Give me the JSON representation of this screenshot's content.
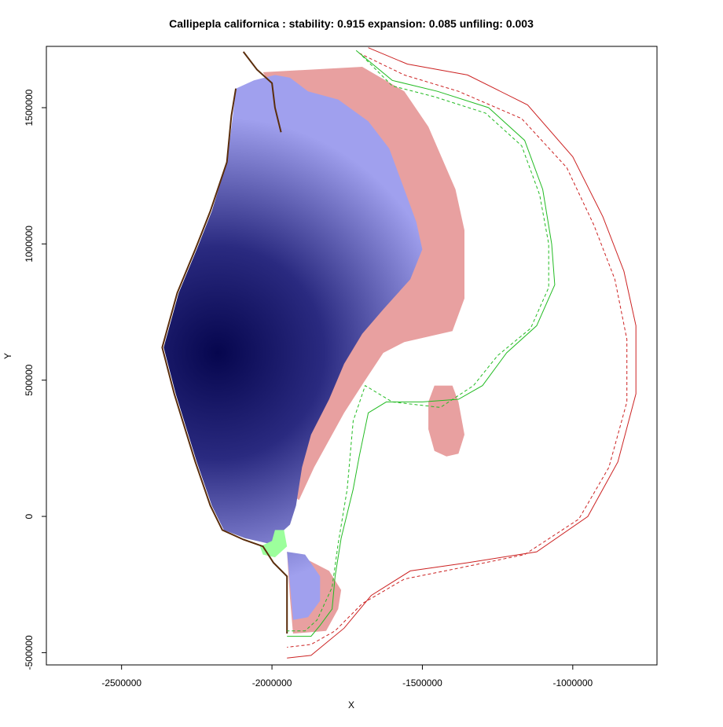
{
  "chart_data": {
    "type": "heatmap",
    "title": "Callipepla californica : stability: 0.915 expansion: 0.085 unfiling: 0.003",
    "xlabel": "X",
    "ylabel": "Y",
    "xlim": [
      -2750000,
      -720000
    ],
    "ylim": [
      -545000,
      1725000
    ],
    "x_ticks": [
      {
        "value": -2500000,
        "label": "-2500000"
      },
      {
        "value": -2000000,
        "label": "-2000000"
      },
      {
        "value": -1500000,
        "label": "-1500000"
      },
      {
        "value": -1000000,
        "label": "-1000000"
      }
    ],
    "y_ticks": [
      {
        "value": -500000,
        "label": "-500000"
      },
      {
        "value": 0,
        "label": "0"
      },
      {
        "value": 500000,
        "label": "500000"
      },
      {
        "value": 1000000,
        "label": "1000000"
      },
      {
        "value": 1500000,
        "label": "1500000"
      }
    ],
    "layers": [
      {
        "name": "expansion",
        "color": "#e8a0a0",
        "polygons": [
          [
            [
              -2030000,
              1630000
            ],
            [
              -1700000,
              1650000
            ],
            [
              -1560000,
              1560000
            ],
            [
              -1480000,
              1430000
            ],
            [
              -1390000,
              1200000
            ],
            [
              -1360000,
              1050000
            ],
            [
              -1360000,
              800000
            ],
            [
              -1400000,
              680000
            ],
            [
              -1560000,
              640000
            ],
            [
              -1630000,
              600000
            ],
            [
              -1690000,
              500000
            ],
            [
              -1760000,
              380000
            ],
            [
              -1860000,
              180000
            ],
            [
              -1910000,
              60000
            ],
            [
              -1960000,
              100000
            ],
            [
              -1960000,
              1500000
            ]
          ],
          [
            [
              -1460000,
              480000
            ],
            [
              -1400000,
              480000
            ],
            [
              -1380000,
              420000
            ],
            [
              -1360000,
              300000
            ],
            [
              -1380000,
              230000
            ],
            [
              -1420000,
              220000
            ],
            [
              -1460000,
              240000
            ],
            [
              -1480000,
              320000
            ],
            [
              -1480000,
              420000
            ]
          ],
          [
            [
              -1950000,
              -130000
            ],
            [
              -1880000,
              -160000
            ],
            [
              -1810000,
              -200000
            ],
            [
              -1770000,
              -270000
            ],
            [
              -1780000,
              -340000
            ],
            [
              -1820000,
              -420000
            ],
            [
              -1930000,
              -430000
            ],
            [
              -1940000,
              -300000
            ]
          ]
        ]
      },
      {
        "name": "stability",
        "color": "#0a0a5a",
        "polygons": [
          [
            [
              -2120000,
              1570000
            ],
            [
              -2060000,
              1600000
            ],
            [
              -1990000,
              1620000
            ],
            [
              -1940000,
              1610000
            ],
            [
              -1880000,
              1560000
            ],
            [
              -1780000,
              1530000
            ],
            [
              -1680000,
              1450000
            ],
            [
              -1610000,
              1350000
            ],
            [
              -1560000,
              1200000
            ],
            [
              -1520000,
              1080000
            ],
            [
              -1500000,
              980000
            ],
            [
              -1540000,
              870000
            ],
            [
              -1630000,
              760000
            ],
            [
              -1700000,
              670000
            ],
            [
              -1760000,
              560000
            ],
            [
              -1810000,
              430000
            ],
            [
              -1870000,
              300000
            ],
            [
              -1900000,
              180000
            ],
            [
              -1920000,
              40000
            ],
            [
              -1940000,
              -30000
            ],
            [
              -2010000,
              -100000
            ],
            [
              -2090000,
              -80000
            ],
            [
              -2160000,
              -50000
            ],
            [
              -2200000,
              40000
            ],
            [
              -2250000,
              200000
            ],
            [
              -2320000,
              450000
            ],
            [
              -2360000,
              620000
            ],
            [
              -2310000,
              820000
            ],
            [
              -2250000,
              980000
            ],
            [
              -2200000,
              1120000
            ],
            [
              -2150000,
              1300000
            ],
            [
              -2130000,
              1470000
            ]
          ],
          [
            [
              -1950000,
              -130000
            ],
            [
              -1890000,
              -140000
            ],
            [
              -1840000,
              -220000
            ],
            [
              -1840000,
              -310000
            ],
            [
              -1880000,
              -370000
            ],
            [
              -1930000,
              -380000
            ],
            [
              -1940000,
              -250000
            ]
          ]
        ]
      },
      {
        "name": "unfilling",
        "color": "#9cff9c",
        "polygons": [
          [
            [
              -2040000,
              -110000
            ],
            [
              -2000000,
              -90000
            ],
            [
              -1990000,
              -50000
            ],
            [
              -1960000,
              -50000
            ],
            [
              -1950000,
              -110000
            ],
            [
              -1990000,
              -150000
            ],
            [
              -2030000,
              -140000
            ]
          ]
        ]
      },
      {
        "name": "native-range-outline",
        "color": "#5a2d0c",
        "polylines": [
          [
            [
              -2120000,
              1570000
            ],
            [
              -2135000,
              1470000
            ],
            [
              -2150000,
              1300000
            ],
            [
              -2205000,
              1120000
            ],
            [
              -2255000,
              980000
            ],
            [
              -2315000,
              820000
            ],
            [
              -2365000,
              620000
            ],
            [
              -2325000,
              450000
            ],
            [
              -2255000,
              200000
            ],
            [
              -2205000,
              40000
            ],
            [
              -2165000,
              -50000
            ],
            [
              -2095000,
              -85000
            ],
            [
              -2030000,
              -110000
            ],
            [
              -1995000,
              -170000
            ],
            [
              -1950000,
              -220000
            ],
            [
              -1950000,
              -430000
            ]
          ],
          [
            [
              -2095000,
              1705000
            ],
            [
              -2050000,
              1640000
            ],
            [
              -2000000,
              1590000
            ],
            [
              -1990000,
              1500000
            ],
            [
              -1970000,
              1410000
            ]
          ]
        ]
      }
    ],
    "contours": [
      {
        "name": "contour-red-solid",
        "color": "#cc2222",
        "dash": "none",
        "points": [
          [
            -1680000,
            1720000
          ],
          [
            -1550000,
            1660000
          ],
          [
            -1350000,
            1620000
          ],
          [
            -1150000,
            1510000
          ],
          [
            -1000000,
            1320000
          ],
          [
            -900000,
            1100000
          ],
          [
            -830000,
            900000
          ],
          [
            -790000,
            700000
          ],
          [
            -790000,
            450000
          ],
          [
            -850000,
            200000
          ],
          [
            -950000,
            0
          ],
          [
            -1120000,
            -130000
          ],
          [
            -1350000,
            -170000
          ],
          [
            -1540000,
            -200000
          ],
          [
            -1670000,
            -290000
          ],
          [
            -1760000,
            -410000
          ],
          [
            -1870000,
            -510000
          ],
          [
            -1950000,
            -520000
          ]
        ]
      },
      {
        "name": "contour-red-dashed",
        "color": "#cc2222",
        "dash": "4,3",
        "points": [
          [
            -1710000,
            1700000
          ],
          [
            -1560000,
            1620000
          ],
          [
            -1380000,
            1560000
          ],
          [
            -1170000,
            1460000
          ],
          [
            -1020000,
            1280000
          ],
          [
            -930000,
            1070000
          ],
          [
            -860000,
            870000
          ],
          [
            -820000,
            650000
          ],
          [
            -820000,
            420000
          ],
          [
            -880000,
            180000
          ],
          [
            -980000,
            -10000
          ],
          [
            -1160000,
            -140000
          ],
          [
            -1380000,
            -190000
          ],
          [
            -1560000,
            -230000
          ],
          [
            -1700000,
            -320000
          ],
          [
            -1790000,
            -420000
          ],
          [
            -1870000,
            -470000
          ],
          [
            -1950000,
            -480000
          ]
        ]
      },
      {
        "name": "contour-green-solid",
        "color": "#22bb22",
        "dash": "none",
        "points": [
          [
            -1720000,
            1710000
          ],
          [
            -1600000,
            1600000
          ],
          [
            -1450000,
            1560000
          ],
          [
            -1280000,
            1500000
          ],
          [
            -1160000,
            1380000
          ],
          [
            -1100000,
            1200000
          ],
          [
            -1070000,
            1000000
          ],
          [
            -1060000,
            850000
          ],
          [
            -1120000,
            700000
          ],
          [
            -1220000,
            600000
          ],
          [
            -1300000,
            480000
          ],
          [
            -1380000,
            430000
          ],
          [
            -1500000,
            420000
          ],
          [
            -1620000,
            420000
          ],
          [
            -1680000,
            380000
          ],
          [
            -1710000,
            220000
          ],
          [
            -1730000,
            100000
          ],
          [
            -1770000,
            -80000
          ],
          [
            -1790000,
            -220000
          ],
          [
            -1800000,
            -340000
          ],
          [
            -1840000,
            -400000
          ],
          [
            -1870000,
            -440000
          ],
          [
            -1950000,
            -440000
          ]
        ]
      },
      {
        "name": "contour-green-dashed",
        "color": "#22bb22",
        "dash": "4,3",
        "points": [
          [
            -1700000,
            1690000
          ],
          [
            -1600000,
            1580000
          ],
          [
            -1460000,
            1540000
          ],
          [
            -1290000,
            1480000
          ],
          [
            -1170000,
            1360000
          ],
          [
            -1110000,
            1180000
          ],
          [
            -1080000,
            1000000
          ],
          [
            -1080000,
            840000
          ],
          [
            -1140000,
            690000
          ],
          [
            -1250000,
            590000
          ],
          [
            -1330000,
            480000
          ],
          [
            -1440000,
            400000
          ],
          [
            -1600000,
            420000
          ],
          [
            -1690000,
            480000
          ],
          [
            -1730000,
            350000
          ],
          [
            -1750000,
            100000
          ],
          [
            -1780000,
            -100000
          ],
          [
            -1800000,
            -260000
          ],
          [
            -1850000,
            -380000
          ],
          [
            -1890000,
            -420000
          ],
          [
            -1950000,
            -420000
          ]
        ]
      }
    ],
    "heat_center": {
      "x": -2180000,
      "y": 600000
    },
    "heat_scale": {
      "low": "#a0a0ee",
      "high": "#06064e"
    }
  }
}
